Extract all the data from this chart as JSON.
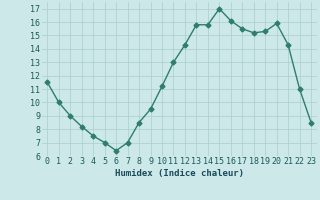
{
  "x": [
    0,
    1,
    2,
    3,
    4,
    5,
    6,
    7,
    8,
    9,
    10,
    11,
    12,
    13,
    14,
    15,
    16,
    17,
    18,
    19,
    20,
    21,
    22,
    23
  ],
  "y": [
    11.5,
    10.0,
    9.0,
    8.2,
    7.5,
    7.0,
    6.4,
    7.0,
    8.5,
    9.5,
    11.2,
    13.0,
    14.3,
    15.8,
    15.8,
    17.0,
    16.1,
    15.5,
    15.2,
    15.3,
    15.9,
    14.3,
    11.0,
    8.5
  ],
  "line_color": "#2e7d6e",
  "marker": "D",
  "markersize": 2.5,
  "linewidth": 1.0,
  "bg_color": "#cde8e8",
  "grid_color": "#aacece",
  "xlabel": "Humidex (Indice chaleur)",
  "xlabel_fontsize": 6.5,
  "xlabel_color": "#1a4a5a",
  "tick_fontsize": 6.0,
  "tick_color": "#1a5a5a",
  "ylim": [
    6,
    17.5
  ],
  "yticks": [
    6,
    7,
    8,
    9,
    10,
    11,
    12,
    13,
    14,
    15,
    16,
    17
  ],
  "xlim": [
    -0.5,
    23.5
  ],
  "xticks": [
    0,
    1,
    2,
    3,
    4,
    5,
    6,
    7,
    8,
    9,
    10,
    11,
    12,
    13,
    14,
    15,
    16,
    17,
    18,
    19,
    20,
    21,
    22,
    23
  ]
}
